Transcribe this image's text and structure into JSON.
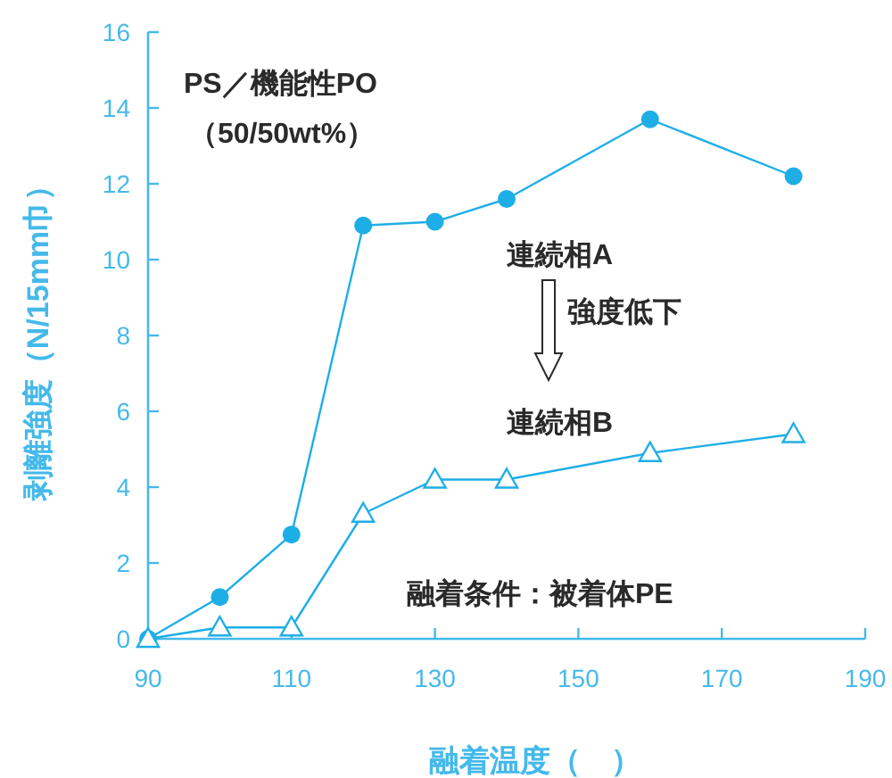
{
  "chart_data": {
    "type": "line",
    "xlabel": "融着温度（　）",
    "ylabel": "剥離強度（N/15mm巾）",
    "x": [
      90,
      100,
      110,
      120,
      130,
      140,
      160,
      180
    ],
    "series": [
      {
        "name": "連続相A",
        "color": "#1eaee6",
        "marker": "circle",
        "values": [
          0,
          1.1,
          2.75,
          10.9,
          11.0,
          11.6,
          13.7,
          12.2
        ]
      },
      {
        "name": "連続相B",
        "color": "#1eaee6",
        "marker": "triangle",
        "values": [
          0,
          0.3,
          0.3,
          3.3,
          4.2,
          4.2,
          4.9,
          5.4
        ]
      }
    ],
    "xlim": [
      90,
      190
    ],
    "xticks": [
      90,
      110,
      130,
      150,
      170,
      190
    ],
    "ylim": [
      0,
      16
    ],
    "yticks": [
      0,
      2,
      4,
      6,
      8,
      10,
      12,
      14,
      16
    ],
    "annotations": [
      "PS／機能性PO",
      "（50/50wt%）",
      "強度低下",
      "融着条件：被着体PE"
    ]
  }
}
